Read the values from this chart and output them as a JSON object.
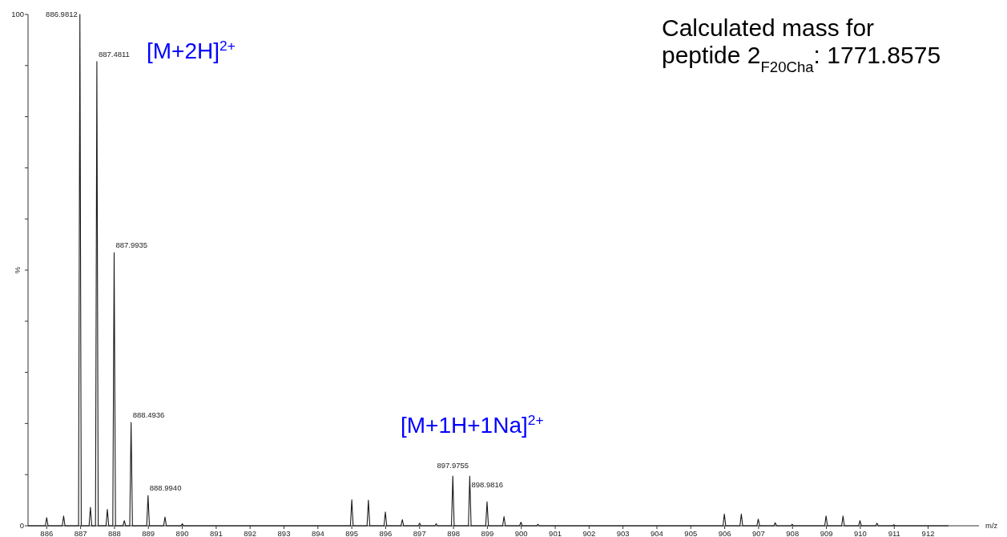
{
  "chart_data": {
    "type": "line",
    "title": "Calculated mass for peptide 2$_{F20Cha}$: 1771.8575",
    "xlabel": "m/z",
    "ylabel": "%",
    "annotations": [
      "[M+2H]$^{2+}$",
      "[M+1H+1Na]$^{2+}$",
      {
        "text": "886.9812",
        "x": 886.98,
        "y": 100
      },
      {
        "text": "887.4811",
        "x": 887.48,
        "y": 90.8
      },
      {
        "text": "887.9935",
        "x": 887.99,
        "y": 53.4
      },
      {
        "text": "888.4936",
        "x": 888.49,
        "y": 20.2
      },
      {
        "text": "888.9940",
        "x": 888.99,
        "y": 5.9
      },
      {
        "text": "897.9755",
        "x": 897.98,
        "y": 9.7
      },
      {
        "text": "898.9816",
        "x": 898.48,
        "y": 9.7
      }
    ],
    "xlim": [
      885.45,
      913.5
    ],
    "ylim": [
      0,
      100
    ],
    "xticks": [
      886,
      887,
      888,
      889,
      890,
      891,
      892,
      893,
      894,
      895,
      896,
      897,
      898,
      899,
      900,
      901,
      902,
      903,
      904,
      905,
      906,
      907,
      908,
      909,
      910,
      911,
      912
    ],
    "yticks": [
      0,
      {
        "value": 10,
        "label": null
      },
      {
        "value": 20,
        "label": null
      },
      {
        "value": 30,
        "label": null
      },
      {
        "value": 40,
        "label": null
      },
      {
        "value": 50,
        "label": null
      },
      {
        "value": 60,
        "label": null
      },
      {
        "value": 70,
        "label": null
      },
      {
        "value": 80,
        "label": null
      },
      {
        "value": 90,
        "label": null
      },
      100
    ],
    "series": [
      {
        "color": "#1a1a1a",
        "x": [
          885.45,
          885.96,
          886,
          886.04,
          886.46,
          886.5,
          886.54,
          886.94,
          886.98,
          887.02,
          887.25,
          887.29,
          887.33,
          887.44,
          887.48,
          887.52,
          887.75,
          887.79,
          887.83,
          887.95,
          887.99,
          888.03,
          888.25,
          888.29,
          888.33,
          888.45,
          888.49,
          888.53,
          888.95,
          888.99,
          889.03,
          889.45,
          889.49,
          889.53,
          889.96,
          890,
          890.04,
          894.96,
          895,
          895.04,
          895.45,
          895.49,
          895.53,
          895.95,
          895.99,
          896.03,
          896.45,
          896.49,
          896.53,
          896.96,
          897,
          897.04,
          897.45,
          897.49,
          897.53,
          897.94,
          897.98,
          898.02,
          898.44,
          898.48,
          898.52,
          898.95,
          898.99,
          899.03,
          899.45,
          899.49,
          899.53,
          899.95,
          899.99,
          900.03,
          900.45,
          900.49,
          900.53,
          905.95,
          905.99,
          906.03,
          906.45,
          906.49,
          906.53,
          906.95,
          906.99,
          907.03,
          907.45,
          907.49,
          907.53,
          907.95,
          907.99,
          908.03,
          908.95,
          908.99,
          909.03,
          909.45,
          909.49,
          909.53,
          909.95,
          909.99,
          910.03,
          910.45,
          910.49,
          910.53,
          910.95,
          910.99,
          911.03,
          912.6
        ],
        "values": [
          0,
          0,
          1.6,
          0,
          0,
          1.9,
          0,
          0,
          100,
          0,
          0,
          3.6,
          0,
          0,
          90.8,
          0,
          0,
          3.2,
          0,
          0,
          53.4,
          0,
          0,
          1.0,
          0,
          0,
          20.2,
          0,
          0,
          5.9,
          0,
          0,
          1.7,
          0,
          0,
          0.4,
          0,
          0,
          5.1,
          0,
          0,
          5.0,
          0,
          0,
          2.7,
          0,
          0,
          1.2,
          0,
          0,
          0.5,
          0,
          0,
          0.4,
          0,
          0,
          9.7,
          0,
          0,
          9.7,
          0,
          0,
          4.7,
          0,
          0,
          1.8,
          0,
          0,
          0.7,
          0,
          0,
          0.3,
          0,
          0,
          2.3,
          0,
          0,
          2.3,
          0,
          0,
          1.3,
          0,
          0,
          0.6,
          0,
          0,
          0.3,
          0,
          0,
          1.9,
          0,
          0,
          1.9,
          0,
          0,
          1.0,
          0,
          0,
          0.5,
          0,
          0,
          0.2,
          0,
          0
        ]
      }
    ]
  }
}
